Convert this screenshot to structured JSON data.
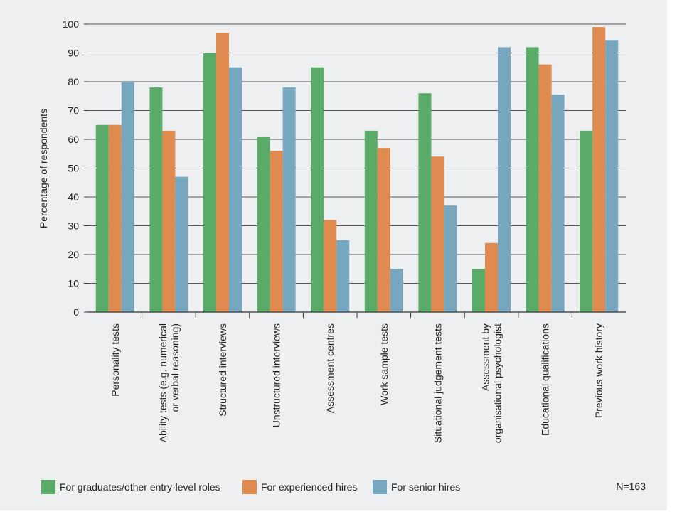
{
  "chart_data": {
    "type": "bar",
    "ylabel": "Percentage of respondents",
    "ylim": [
      0,
      100
    ],
    "yticks": [
      0,
      10,
      20,
      30,
      40,
      50,
      60,
      70,
      80,
      90,
      100
    ],
    "grid": true,
    "categories": [
      [
        "Personality tests"
      ],
      [
        "Ability tests (e.g. numerical",
        "or verbal reasoning)"
      ],
      [
        "Structured interviews"
      ],
      [
        "Unstructured interviews"
      ],
      [
        "Assessment centres"
      ],
      [
        "Work sample tests"
      ],
      [
        "Situational judgement tests"
      ],
      [
        "Assessment by",
        "organisational psychologist"
      ],
      [
        "Educational qualifications"
      ],
      [
        "Previous work history"
      ]
    ],
    "series": [
      {
        "name": "For graduates/other entry-level roles",
        "color": "#5aaa68",
        "values": [
          65,
          78,
          90,
          61,
          85,
          63,
          76,
          15,
          92,
          63
        ]
      },
      {
        "name": "For experienced hires",
        "color": "#df8a4f",
        "values": [
          65,
          63,
          97,
          56,
          32,
          57,
          54,
          24,
          86,
          99
        ]
      },
      {
        "name": "For senior hires",
        "color": "#76a7bf",
        "values": [
          80,
          47,
          85,
          78,
          25,
          15,
          37,
          92,
          75.5,
          94.5
        ]
      }
    ],
    "legend_position": "bottom",
    "note": "N=163"
  }
}
